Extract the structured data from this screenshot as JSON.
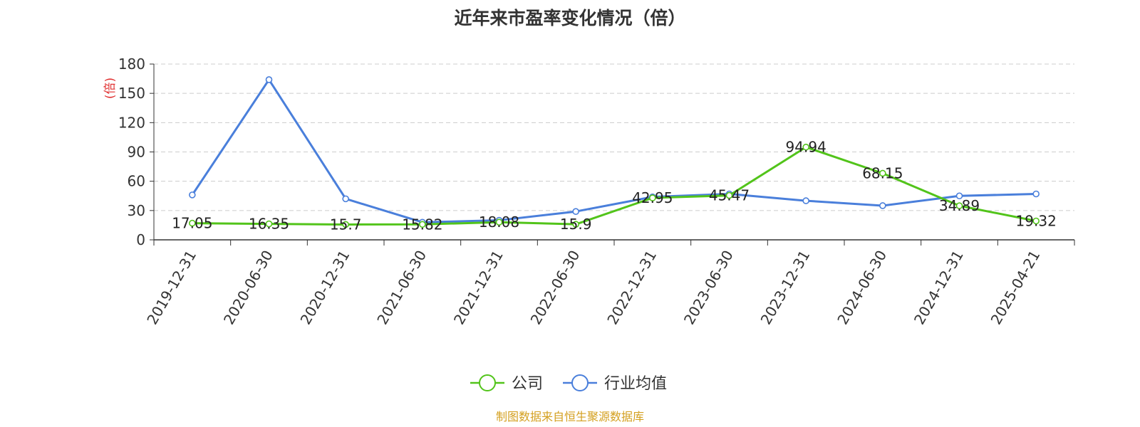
{
  "chart_data": {
    "type": "line",
    "title": "近年来市盈率变化情况（倍）",
    "ylabel": "(倍)",
    "ylim": [
      0,
      180
    ],
    "yticks": [
      0,
      30,
      60,
      90,
      120,
      150,
      180
    ],
    "grid": true,
    "grid_style": "dashed",
    "legend_position": "bottom-center",
    "categories": [
      "2019-12-31",
      "2020-06-30",
      "2020-12-31",
      "2021-06-30",
      "2021-12-31",
      "2022-06-30",
      "2022-12-31",
      "2023-06-30",
      "2023-12-31",
      "2024-06-30",
      "2024-12-31",
      "2025-04-21"
    ],
    "series": [
      {
        "name": "公司",
        "color": "#52c41a",
        "values": [
          17.05,
          16.35,
          15.7,
          15.82,
          18.08,
          15.9,
          42.95,
          45.47,
          94.94,
          68.15,
          34.89,
          19.32
        ],
        "labels": [
          "17.05",
          "16.35",
          "15.7",
          "15.82",
          "18.08",
          "15.9",
          "42.95",
          "45.47",
          "94.94",
          "68.15",
          "34.89",
          "19.32"
        ]
      },
      {
        "name": "行业均值",
        "color": "#4a7fdb",
        "values": [
          46,
          164,
          42,
          18,
          20,
          29,
          44,
          47,
          40,
          35,
          45,
          47
        ]
      }
    ],
    "source": "制图数据来自恒生聚源数据库"
  },
  "colors": {
    "unit_label": "#e03030",
    "source_text": "#d4a020",
    "axis": "#333333",
    "grid": "#cccccc"
  }
}
